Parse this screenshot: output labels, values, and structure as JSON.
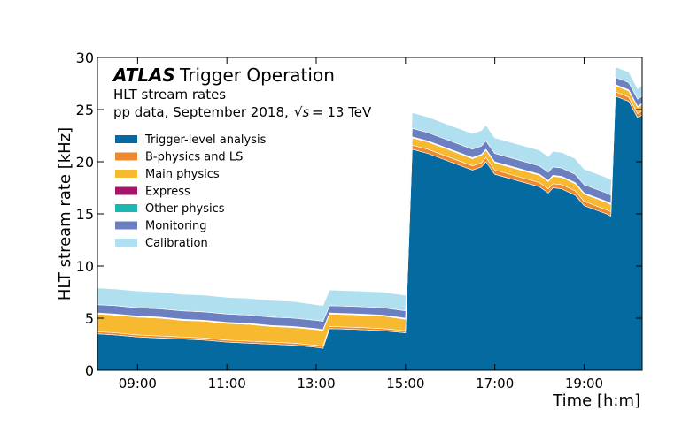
{
  "chart_data": {
    "type": "area",
    "stacked": true,
    "title_bold": "ATLAS",
    "title_rest": "Trigger Operation",
    "subtitle1": "HLT stream rates",
    "subtitle2": "pp data, September 2018,",
    "energy_label_sqrt": "√s",
    "energy_label_rest": "= 13 TeV",
    "xlabel": "Time [h:m]",
    "ylabel": "HLT stream rate [kHz]",
    "xlim": [
      8.1,
      20.3
    ],
    "ylim": [
      0,
      30
    ],
    "x_ticks": [
      9,
      11,
      13,
      15,
      17,
      19
    ],
    "x_tick_labels": [
      "09:00",
      "11:00",
      "13:00",
      "15:00",
      "17:00",
      "19:00"
    ],
    "y_ticks": [
      0,
      5,
      10,
      15,
      20,
      25,
      30
    ],
    "y_tick_labels": [
      "0",
      "5",
      "10",
      "15",
      "20",
      "25",
      "30"
    ],
    "legend_position": "top-left",
    "x": [
      8.1,
      8.5,
      9.0,
      9.5,
      10.0,
      10.5,
      11.0,
      11.5,
      12.0,
      12.5,
      13.0,
      13.15,
      13.3,
      14.0,
      14.5,
      15.0,
      15.15,
      15.5,
      16.0,
      16.5,
      16.7,
      16.8,
      17.0,
      17.5,
      18.0,
      18.2,
      18.3,
      18.5,
      18.8,
      19.0,
      19.5,
      19.6,
      19.7,
      20.0,
      20.1,
      20.2,
      20.3
    ],
    "series": [
      {
        "name": "Trigger-level analysis",
        "color": "#046a9f",
        "values": [
          3.5,
          3.4,
          3.2,
          3.1,
          3.0,
          2.9,
          2.7,
          2.6,
          2.5,
          2.4,
          2.2,
          2.1,
          4.0,
          3.9,
          3.8,
          3.6,
          21.2,
          20.8,
          20.0,
          19.2,
          19.5,
          20.0,
          18.8,
          18.2,
          17.6,
          17.0,
          17.5,
          17.4,
          16.8,
          15.8,
          15.0,
          14.8,
          26.3,
          25.8,
          25.0,
          24.2,
          24.5
        ]
      },
      {
        "name": "B-physics and LS",
        "color": "#ee8a2d",
        "values": [
          0.2,
          0.2,
          0.2,
          0.2,
          0.2,
          0.2,
          0.2,
          0.2,
          0.2,
          0.2,
          0.2,
          0.2,
          0.2,
          0.2,
          0.2,
          0.2,
          0.4,
          0.4,
          0.4,
          0.4,
          0.4,
          0.4,
          0.4,
          0.4,
          0.4,
          0.4,
          0.4,
          0.4,
          0.4,
          0.4,
          0.4,
          0.4,
          0.4,
          0.4,
          0.4,
          0.4,
          0.4
        ]
      },
      {
        "name": "Main physics",
        "color": "#f6b92f",
        "values": [
          1.7,
          1.7,
          1.7,
          1.7,
          1.6,
          1.6,
          1.6,
          1.6,
          1.5,
          1.5,
          1.5,
          1.5,
          1.2,
          1.2,
          1.2,
          1.1,
          0.7,
          0.7,
          0.7,
          0.7,
          0.7,
          0.7,
          0.7,
          0.7,
          0.7,
          0.7,
          0.7,
          0.7,
          0.7,
          0.7,
          0.7,
          0.7,
          0.6,
          0.6,
          0.6,
          0.6,
          0.6
        ]
      },
      {
        "name": "Express",
        "color": "#a3156a",
        "values": [
          0.05,
          0.05,
          0.05,
          0.05,
          0.05,
          0.05,
          0.05,
          0.05,
          0.05,
          0.05,
          0.05,
          0.05,
          0.05,
          0.05,
          0.05,
          0.05,
          0.05,
          0.05,
          0.05,
          0.05,
          0.05,
          0.05,
          0.05,
          0.05,
          0.05,
          0.05,
          0.05,
          0.05,
          0.05,
          0.05,
          0.05,
          0.05,
          0.05,
          0.05,
          0.05,
          0.05,
          0.05
        ]
      },
      {
        "name": "Other physics",
        "color": "#1cb6b0",
        "values": [
          0.05,
          0.05,
          0.05,
          0.05,
          0.05,
          0.05,
          0.05,
          0.05,
          0.05,
          0.05,
          0.05,
          0.05,
          0.05,
          0.05,
          0.05,
          0.05,
          0.05,
          0.05,
          0.05,
          0.05,
          0.05,
          0.05,
          0.05,
          0.05,
          0.05,
          0.05,
          0.05,
          0.05,
          0.05,
          0.05,
          0.05,
          0.05,
          0.05,
          0.05,
          0.05,
          0.05,
          0.05
        ]
      },
      {
        "name": "Monitoring",
        "color": "#6c7fc0",
        "values": [
          0.8,
          0.8,
          0.8,
          0.8,
          0.8,
          0.8,
          0.8,
          0.8,
          0.8,
          0.8,
          0.8,
          0.8,
          0.7,
          0.7,
          0.7,
          0.7,
          0.8,
          0.8,
          0.8,
          0.8,
          0.8,
          0.8,
          0.8,
          0.8,
          0.8,
          0.8,
          0.8,
          0.8,
          0.8,
          0.8,
          0.8,
          0.8,
          0.7,
          0.7,
          0.7,
          0.7,
          0.7
        ]
      },
      {
        "name": "Calibration",
        "color": "#b0e0ef",
        "values": [
          1.6,
          1.6,
          1.6,
          1.6,
          1.6,
          1.6,
          1.6,
          1.6,
          1.6,
          1.6,
          1.5,
          1.5,
          1.5,
          1.5,
          1.5,
          1.5,
          1.5,
          1.5,
          1.5,
          1.5,
          1.5,
          1.5,
          1.5,
          1.5,
          1.5,
          1.5,
          1.5,
          1.5,
          1.5,
          1.5,
          1.5,
          1.5,
          1.0,
          1.0,
          1.0,
          1.0,
          1.0
        ]
      }
    ]
  }
}
